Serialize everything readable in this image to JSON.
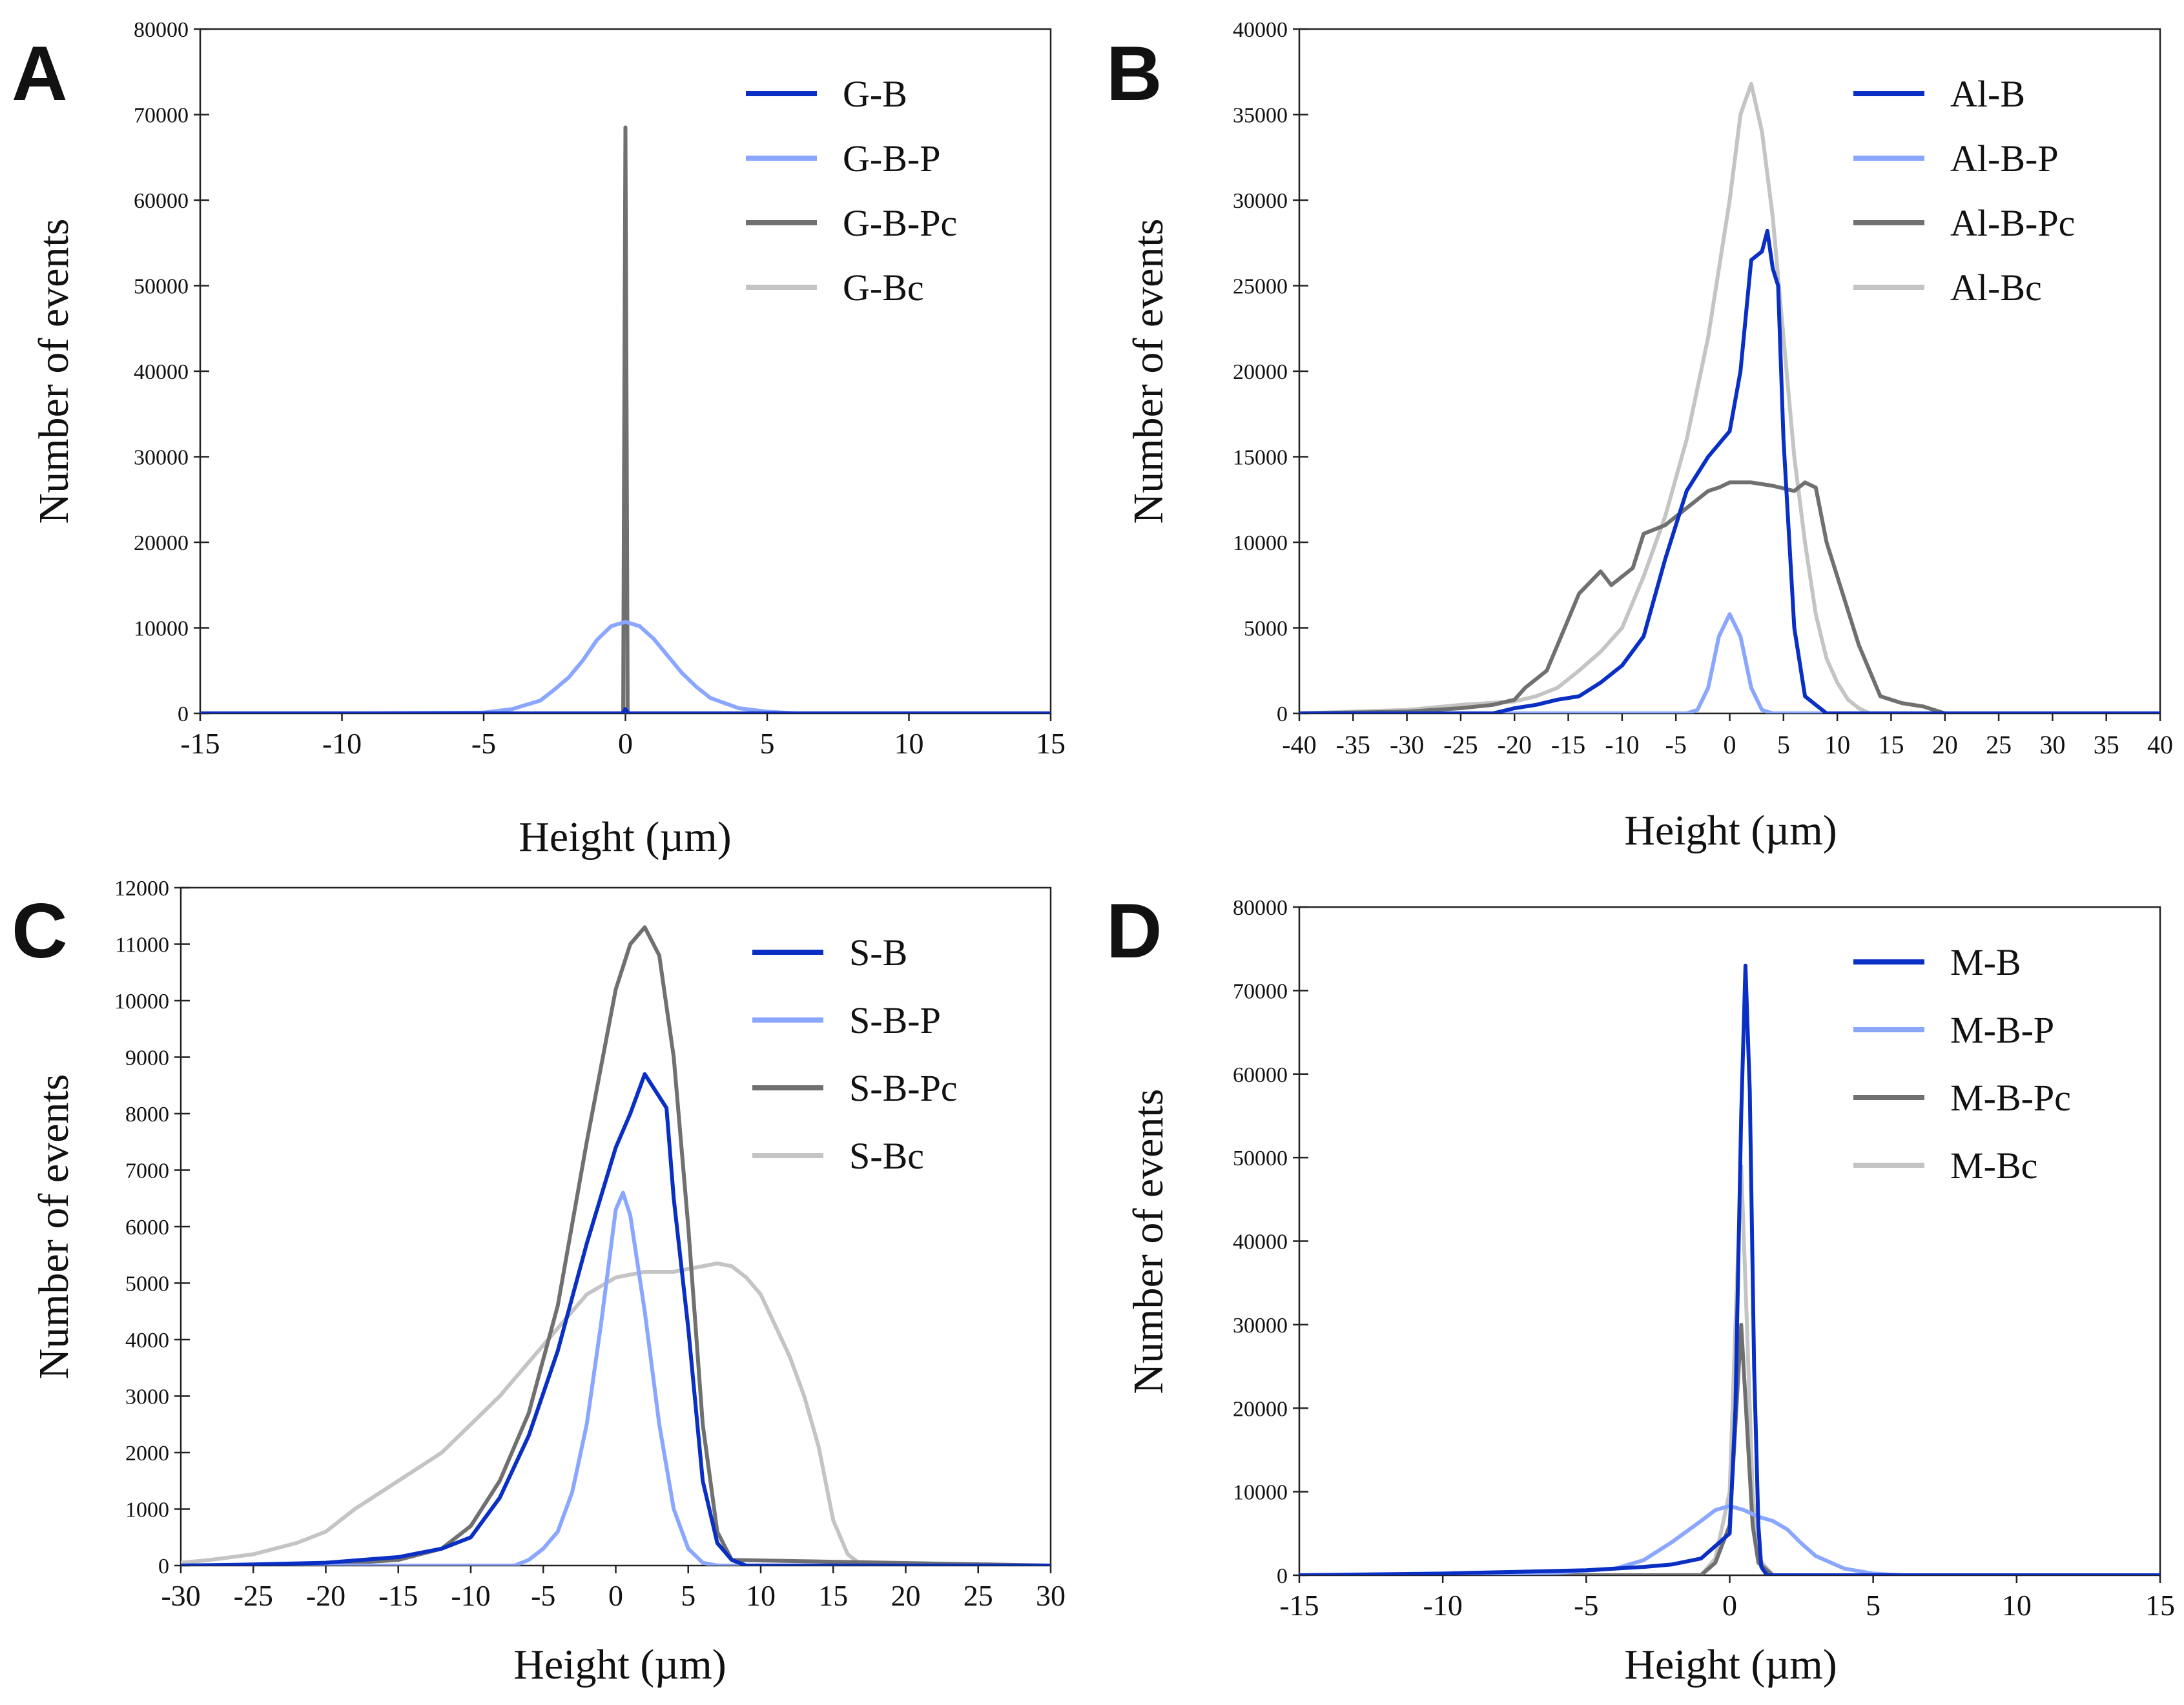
{
  "colors": {
    "dark_blue": "#0a2fc4",
    "light_blue": "#8aa6ff",
    "dark_gray": "#707070",
    "light_gray": "#c4c4c4"
  },
  "chart_data": [
    {
      "panel": "A",
      "type": "line",
      "xlabel": "Height (µm)",
      "ylabel": "Number of events",
      "xlim": [
        -15,
        15
      ],
      "ylim": [
        0,
        80000
      ],
      "xticks": [
        -15,
        -10,
        -5,
        0,
        5,
        10,
        15
      ],
      "xtick_labels": [
        "-15",
        "-10",
        "-5",
        "0",
        "5",
        "10",
        "15"
      ],
      "yticks": [
        0,
        10000,
        20000,
        30000,
        40000,
        50000,
        60000,
        70000,
        80000
      ],
      "ytick_labels": [
        "0",
        "10000",
        "20000",
        "30000",
        "40000",
        "50000",
        "60000",
        "70000",
        "80000"
      ],
      "legend_position": "top-right",
      "series": [
        {
          "name": "G-B",
          "color": "#0a2fc4",
          "x": [
            -15,
            -0.1,
            0,
            0.1,
            15
          ],
          "y": [
            0,
            0,
            500,
            0,
            0
          ]
        },
        {
          "name": "G-B-P",
          "color": "#8aa6ff",
          "x": [
            -9,
            -5,
            -4,
            -3,
            -2.5,
            -2,
            -1.5,
            -1,
            -0.5,
            0,
            0.5,
            1,
            1.5,
            2,
            2.5,
            3,
            4,
            5,
            6,
            15
          ],
          "y": [
            0,
            100,
            500,
            1500,
            2800,
            4200,
            6200,
            8600,
            10200,
            10700,
            10200,
            8700,
            6700,
            4700,
            3100,
            1800,
            600,
            200,
            0,
            0
          ]
        },
        {
          "name": "G-B-Pc",
          "color": "#707070",
          "x": [
            -15,
            -0.08,
            -0.04,
            0,
            0.04,
            0.08,
            15
          ],
          "y": [
            0,
            0,
            35000,
            68500,
            35000,
            0,
            0
          ]
        },
        {
          "name": "G-Bc",
          "color": "#c4c4c4",
          "x": [
            -15,
            -0.06,
            -0.03,
            0,
            0.03,
            0.06,
            15
          ],
          "y": [
            0,
            0,
            30000,
            61000,
            30000,
            0,
            0
          ]
        }
      ]
    },
    {
      "panel": "B",
      "type": "line",
      "xlabel": "Height (µm)",
      "ylabel": "Number of events",
      "xlim": [
        -40,
        40
      ],
      "ylim": [
        0,
        40000
      ],
      "xticks": [
        -40,
        -35,
        -30,
        -25,
        -20,
        -15,
        -10,
        -5,
        0,
        5,
        10,
        15,
        20,
        25,
        30,
        35,
        40
      ],
      "xtick_labels": [
        "-40",
        "-35",
        "-30",
        "-25",
        "-20",
        "-15",
        "-10",
        "-5",
        "0",
        "5",
        "10",
        "15",
        "20",
        "25",
        "30",
        "35",
        "40"
      ],
      "yticks": [
        0,
        5000,
        10000,
        15000,
        20000,
        25000,
        30000,
        35000,
        40000
      ],
      "ytick_labels": [
        "0",
        "5000",
        "10000",
        "15000",
        "20000",
        "25000",
        "30000",
        "35000",
        "40000"
      ],
      "legend_position": "top-right",
      "series": [
        {
          "name": "Al-B",
          "color": "#0a2fc4",
          "x": [
            -40,
            -22,
            -20,
            -18,
            -16,
            -14,
            -12,
            -10,
            -8,
            -6,
            -4,
            -2,
            0,
            1,
            2,
            3,
            3.5,
            4,
            4.5,
            5,
            6,
            7,
            8,
            9,
            10,
            40
          ],
          "y": [
            0,
            0,
            300,
            500,
            800,
            1000,
            1800,
            2800,
            4500,
            9000,
            13000,
            15000,
            16500,
            20000,
            26500,
            27000,
            28200,
            26000,
            25000,
            16000,
            5000,
            1000,
            500,
            0,
            0,
            0
          ]
        },
        {
          "name": "Al-B-P",
          "color": "#8aa6ff",
          "x": [
            -40,
            -4,
            -3,
            -2,
            -1,
            0,
            1,
            2,
            3,
            4,
            40
          ],
          "y": [
            0,
            0,
            200,
            1500,
            4500,
            5800,
            4500,
            1500,
            200,
            0,
            0
          ]
        },
        {
          "name": "Al-B-Pc",
          "color": "#707070",
          "x": [
            -40,
            -30,
            -25,
            -22,
            -20,
            -19,
            -18,
            -17,
            -16,
            -14,
            -12,
            -11,
            -10,
            -9,
            -8,
            -6,
            -4,
            -2,
            -1,
            0,
            2,
            4,
            6,
            7,
            8,
            9,
            10,
            12,
            14,
            16,
            18,
            20,
            40
          ],
          "y": [
            0,
            100,
            300,
            500,
            800,
            1500,
            2000,
            2500,
            4000,
            7000,
            8300,
            7500,
            8000,
            8500,
            10500,
            11000,
            12000,
            13000,
            13200,
            13500,
            13500,
            13300,
            13000,
            13500,
            13200,
            10000,
            8000,
            4000,
            1000,
            600,
            400,
            0,
            0
          ]
        },
        {
          "name": "Al-Bc",
          "color": "#c4c4c4",
          "x": [
            -40,
            -35,
            -30,
            -25,
            -20,
            -18,
            -16,
            -14,
            -12,
            -10,
            -8,
            -6,
            -4,
            -2,
            0,
            1,
            2,
            3,
            4,
            5,
            6,
            7,
            8,
            9,
            10,
            11,
            12,
            13,
            15,
            40
          ],
          "y": [
            0,
            100,
            200,
            500,
            700,
            1000,
            1500,
            2500,
            3600,
            5000,
            8000,
            11500,
            16000,
            22000,
            30000,
            35000,
            36800,
            34000,
            29000,
            22000,
            15000,
            10000,
            5800,
            3200,
            1800,
            800,
            300,
            0,
            0,
            0
          ]
        }
      ]
    },
    {
      "panel": "C",
      "type": "line",
      "xlabel": "Height (µm)",
      "ylabel": "Number of events",
      "xlim": [
        -30,
        30
      ],
      "ylim": [
        0,
        12000
      ],
      "xticks": [
        -30,
        -25,
        -20,
        -15,
        -10,
        -5,
        0,
        5,
        10,
        15,
        20,
        25,
        30
      ],
      "xtick_labels": [
        "-30",
        "-25",
        "-20",
        "-15",
        "-10",
        "-5",
        "0",
        "5",
        "10",
        "15",
        "20",
        "25",
        "30"
      ],
      "yticks": [
        0,
        1000,
        2000,
        3000,
        4000,
        5000,
        6000,
        7000,
        8000,
        9000,
        10000,
        11000,
        12000
      ],
      "ytick_labels": [
        "0",
        "1000",
        "2000",
        "3000",
        "4000",
        "5000",
        "6000",
        "7000",
        "8000",
        "9000",
        "10000",
        "11000",
        "12000"
      ],
      "legend_position": "top-right",
      "series": [
        {
          "name": "S-B",
          "color": "#0a2fc4",
          "x": [
            -30,
            -25,
            -20,
            -15,
            -12,
            -10,
            -8,
            -6,
            -4,
            -2,
            0,
            1,
            2,
            3,
            3.5,
            4,
            5,
            6,
            7,
            8,
            9,
            30
          ],
          "y": [
            0,
            20,
            50,
            150,
            300,
            500,
            1200,
            2300,
            3800,
            5700,
            7400,
            8000,
            8700,
            8300,
            8100,
            6500,
            4200,
            1500,
            400,
            100,
            0,
            0
          ]
        },
        {
          "name": "S-B-P",
          "color": "#8aa6ff",
          "x": [
            -30,
            -7,
            -6,
            -5,
            -4,
            -3,
            -2,
            -1,
            0,
            0.5,
            1,
            2,
            3,
            4,
            5,
            6,
            7,
            30
          ],
          "y": [
            0,
            0,
            100,
            300,
            600,
            1300,
            2500,
            4300,
            6300,
            6600,
            6200,
            4500,
            2500,
            1000,
            300,
            50,
            0,
            0
          ]
        },
        {
          "name": "S-B-Pc",
          "color": "#707070",
          "x": [
            -30,
            -20,
            -15,
            -12,
            -10,
            -8,
            -6,
            -4,
            -2,
            0,
            1,
            2,
            3,
            4,
            5,
            6,
            7,
            8,
            30
          ],
          "y": [
            0,
            20,
            100,
            300,
            700,
            1500,
            2700,
            4600,
            7500,
            10200,
            11000,
            11300,
            10800,
            9000,
            6000,
            2500,
            600,
            100,
            0
          ]
        },
        {
          "name": "S-Bc",
          "color": "#c4c4c4",
          "x": [
            -30,
            -28,
            -25,
            -22,
            -20,
            -18,
            -15,
            -12,
            -10,
            -8,
            -6,
            -4,
            -2,
            0,
            2,
            4,
            6,
            7,
            8,
            9,
            10,
            12,
            13,
            14,
            15,
            16,
            17,
            30
          ],
          "y": [
            50,
            100,
            200,
            400,
            600,
            1000,
            1500,
            2000,
            2500,
            3000,
            3600,
            4200,
            4800,
            5100,
            5200,
            5200,
            5300,
            5350,
            5300,
            5100,
            4800,
            3700,
            3000,
            2100,
            800,
            200,
            0,
            0
          ]
        }
      ]
    },
    {
      "panel": "D",
      "type": "line",
      "xlabel": "Height (µm)",
      "ylabel": "Number of events",
      "xlim": [
        -15,
        15
      ],
      "ylim": [
        0,
        80000
      ],
      "xticks": [
        -15,
        -10,
        -5,
        0,
        5,
        10,
        15
      ],
      "xtick_labels": [
        "-15",
        "-10",
        "-5",
        "0",
        "5",
        "10",
        "15"
      ],
      "yticks": [
        0,
        10000,
        20000,
        30000,
        40000,
        50000,
        60000,
        70000,
        80000
      ],
      "ytick_labels": [
        "0",
        "10000",
        "20000",
        "30000",
        "40000",
        "50000",
        "60000",
        "70000",
        "80000"
      ],
      "legend_position": "top-right",
      "series": [
        {
          "name": "M-B",
          "color": "#0a2fc4",
          "x": [
            -15,
            -10,
            -5,
            -3,
            -2,
            -1,
            0,
            0.2,
            0.4,
            0.55,
            0.7,
            0.85,
            1,
            1.1,
            1.3,
            15
          ],
          "y": [
            0,
            200,
            600,
            1000,
            1300,
            2000,
            5000,
            20000,
            55000,
            73000,
            58000,
            25000,
            6000,
            1000,
            0,
            0
          ]
        },
        {
          "name": "M-B-P",
          "color": "#8aa6ff",
          "x": [
            -15,
            -10,
            -6,
            -4,
            -3,
            -2,
            -1,
            -0.5,
            0,
            0.5,
            1,
            1.5,
            2,
            2.5,
            3,
            4,
            5,
            6,
            15
          ],
          "y": [
            0,
            100,
            300,
            800,
            1800,
            4000,
            6500,
            7800,
            8300,
            7800,
            7000,
            6500,
            5500,
            3800,
            2300,
            800,
            200,
            0,
            0
          ]
        },
        {
          "name": "M-B-Pc",
          "color": "#707070",
          "x": [
            -15,
            -1,
            -0.5,
            0,
            0.2,
            0.4,
            0.6,
            0.8,
            1,
            1.5,
            15
          ],
          "y": [
            0,
            0,
            1500,
            6000,
            18000,
            30000,
            18000,
            6000,
            1500,
            0,
            0
          ]
        },
        {
          "name": "M-Bc",
          "color": "#c4c4c4",
          "x": [
            -15,
            -1,
            -0.5,
            0,
            0.2,
            0.4,
            0.6,
            0.8,
            1,
            1.5,
            15
          ],
          "y": [
            0,
            0,
            2000,
            10000,
            30000,
            49000,
            30000,
            10000,
            2000,
            0,
            0
          ]
        }
      ]
    }
  ]
}
